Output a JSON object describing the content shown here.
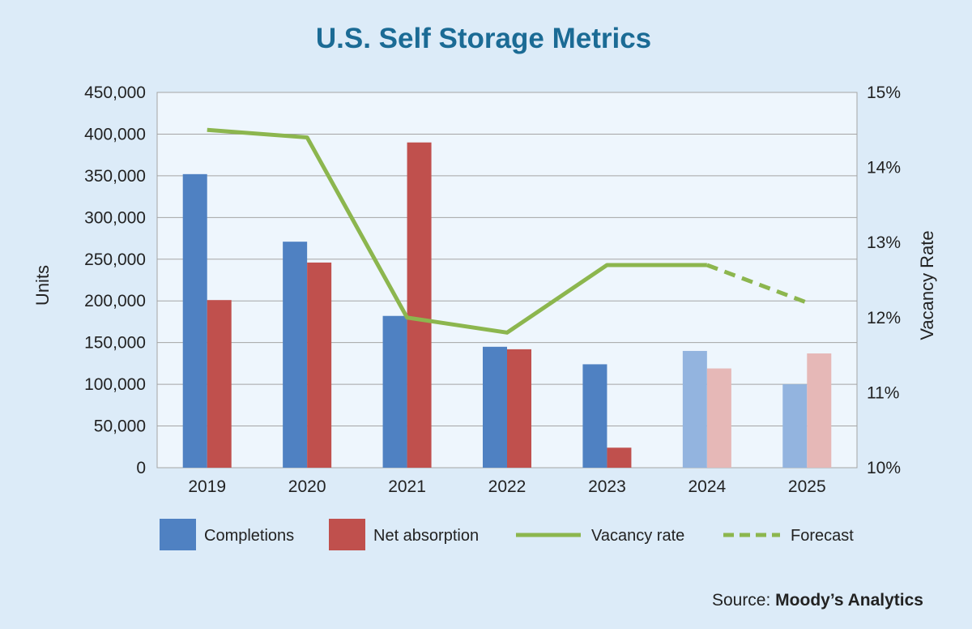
{
  "source": {
    "prefix": "Source: ",
    "name": "Moody’s Analytics"
  },
  "chart_data": {
    "type": "bar",
    "title": "U.S. Self Storage Metrics",
    "ylabel": "Units",
    "y2label": "Vacancy Rate",
    "categories": [
      "2019",
      "2020",
      "2021",
      "2022",
      "2023",
      "2024",
      "2025"
    ],
    "ylim": [
      0,
      450000
    ],
    "y2lim": [
      10,
      15
    ],
    "yticks": [
      "0",
      "50,000",
      "100,000",
      "150,000",
      "200,000",
      "250,000",
      "300,000",
      "350,000",
      "400,000",
      "450,000"
    ],
    "y2ticks": [
      "10%",
      "11%",
      "12%",
      "13%",
      "14%",
      "15%"
    ],
    "grid": true,
    "legend_position": "bottom",
    "forecast_categories": [
      "2024",
      "2025"
    ],
    "series": [
      {
        "name": "Completions",
        "type": "bar",
        "axis": "left",
        "color": "#4f81c2",
        "forecast_color": "#93b4df",
        "values": [
          352000,
          271000,
          182000,
          145000,
          124000,
          140000,
          100000
        ]
      },
      {
        "name": "Net absorption",
        "type": "bar",
        "axis": "left",
        "color": "#c0504d",
        "forecast_color": "#e6b8b7",
        "values": [
          201000,
          246000,
          390000,
          142000,
          24000,
          119000,
          137000
        ]
      },
      {
        "name": "Vacancy rate",
        "type": "line",
        "axis": "right",
        "color": "#8cb64e",
        "x": [
          "2019",
          "2020",
          "2021",
          "2022",
          "2023",
          "2024"
        ],
        "values": [
          14.5,
          14.4,
          12.0,
          11.8,
          12.7,
          12.7
        ]
      },
      {
        "name": "Forecast",
        "type": "line",
        "axis": "right",
        "style": "dashed",
        "color": "#8cb64e",
        "x": [
          "2024",
          "2025"
        ],
        "values": [
          12.7,
          12.2
        ]
      }
    ]
  }
}
